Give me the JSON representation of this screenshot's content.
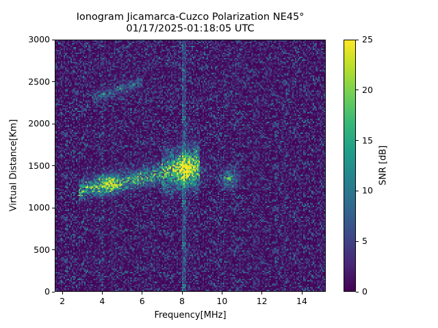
{
  "chart_data": {
    "type": "heatmap",
    "title": "Ionogram Jicamarca-Cuzco Polarization NE45°",
    "subtitle": "01/17/2025-01:18:05 UTC",
    "xlabel": "Frequency[MHz]",
    "ylabel": "Virtual Distance[Km]",
    "colorbar_label": "SNR [dB]",
    "colormap": "viridis",
    "xlim": [
      1.62,
      15.2
    ],
    "ylim": [
      0,
      3000
    ],
    "clim": [
      0,
      25
    ],
    "x_ticks": [
      2,
      4,
      6,
      8,
      10,
      12,
      14
    ],
    "y_ticks": [
      0,
      500,
      1000,
      1500,
      2000,
      2500,
      3000
    ],
    "colorbar_ticks": [
      0,
      5,
      10,
      15,
      20,
      25
    ],
    "grid": false,
    "features": [
      {
        "name": "F-layer main trace",
        "freq_range_mhz": [
          2.8,
          8.8
        ],
        "distance_km": [
          1150,
          1550
        ],
        "peak_snr_db": 25,
        "description": "Echo band rising from ~1200 km at 3 MHz to ~1550 km at 8.5 MHz"
      },
      {
        "name": "strong blob 4 MHz",
        "freq_mhz": 4.3,
        "distance_km": 1280,
        "peak_snr_db": 25
      },
      {
        "name": "strong blob 8.2 MHz",
        "freq_mhz": 8.2,
        "distance_km": 1450,
        "peak_snr_db": 25
      },
      {
        "name": "echo near 10.4 MHz",
        "freq_mhz": 10.4,
        "distance_km": 1350,
        "peak_snr_db": 22
      },
      {
        "name": "faint multi-hop trace",
        "freq_range_mhz": [
          3.5,
          6.0
        ],
        "distance_km": [
          2300,
          2500
        ],
        "peak_snr_db": 12
      },
      {
        "name": "interference stripe",
        "freq_mhz": 8.1,
        "distance_km": [
          0,
          3000
        ],
        "peak_snr_db": 6
      }
    ],
    "background_noise_snr_db": [
      0,
      8
    ]
  },
  "colors": {
    "viridis_stops": [
      "#440154",
      "#482878",
      "#3e4989",
      "#31688e",
      "#26828e",
      "#1f9e89",
      "#35b779",
      "#6ece58",
      "#b5de2b",
      "#fde725"
    ]
  }
}
